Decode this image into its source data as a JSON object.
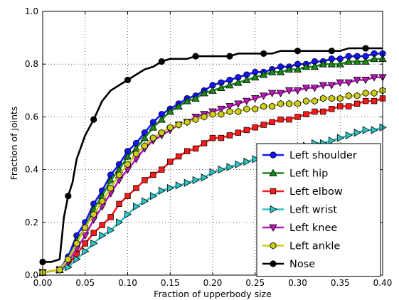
{
  "chart_data": {
    "type": "line",
    "title": "",
    "xlabel": "Fraction of upperbody size",
    "ylabel": "Fraction of joints",
    "xlim": [
      0.0,
      0.4
    ],
    "ylim": [
      0.0,
      1.0
    ],
    "x_ticks": [
      "0.00",
      "0.05",
      "0.10",
      "0.15",
      "0.20",
      "0.25",
      "0.30",
      "0.35",
      "0.40"
    ],
    "y_ticks": [
      "0.0",
      "0.2",
      "0.4",
      "0.6",
      "0.8",
      "1.0"
    ],
    "grid": true,
    "legend_position": "lower-right",
    "series": [
      {
        "name": "Left shoulder",
        "color": "#1414ff",
        "marker": "circle",
        "points": [
          [
            0.0,
            0.01
          ],
          [
            0.02,
            0.02
          ],
          [
            0.03,
            0.07
          ],
          [
            0.04,
            0.15
          ],
          [
            0.05,
            0.2
          ],
          [
            0.06,
            0.27
          ],
          [
            0.07,
            0.32
          ],
          [
            0.08,
            0.38
          ],
          [
            0.09,
            0.42
          ],
          [
            0.1,
            0.47
          ],
          [
            0.11,
            0.5
          ],
          [
            0.12,
            0.54
          ],
          [
            0.13,
            0.58
          ],
          [
            0.14,
            0.61
          ],
          [
            0.15,
            0.63
          ],
          [
            0.16,
            0.65
          ],
          [
            0.17,
            0.67
          ],
          [
            0.18,
            0.68
          ],
          [
            0.19,
            0.7
          ],
          [
            0.2,
            0.72
          ],
          [
            0.21,
            0.73
          ],
          [
            0.22,
            0.74
          ],
          [
            0.23,
            0.75
          ],
          [
            0.24,
            0.76
          ],
          [
            0.25,
            0.77
          ],
          [
            0.26,
            0.77
          ],
          [
            0.27,
            0.78
          ],
          [
            0.28,
            0.79
          ],
          [
            0.29,
            0.79
          ],
          [
            0.3,
            0.8
          ],
          [
            0.31,
            0.8
          ],
          [
            0.32,
            0.81
          ],
          [
            0.33,
            0.81
          ],
          [
            0.34,
            0.82
          ],
          [
            0.35,
            0.82
          ],
          [
            0.36,
            0.83
          ],
          [
            0.37,
            0.83
          ],
          [
            0.38,
            0.83
          ],
          [
            0.39,
            0.84
          ],
          [
            0.4,
            0.84
          ]
        ]
      },
      {
        "name": "Left hip",
        "color": "#1a8a1a",
        "marker": "triangle-up",
        "points": [
          [
            0.0,
            0.01
          ],
          [
            0.02,
            0.02
          ],
          [
            0.03,
            0.06
          ],
          [
            0.04,
            0.13
          ],
          [
            0.05,
            0.18
          ],
          [
            0.06,
            0.25
          ],
          [
            0.07,
            0.3
          ],
          [
            0.08,
            0.36
          ],
          [
            0.09,
            0.4
          ],
          [
            0.1,
            0.45
          ],
          [
            0.11,
            0.48
          ],
          [
            0.12,
            0.52
          ],
          [
            0.13,
            0.56
          ],
          [
            0.14,
            0.59
          ],
          [
            0.15,
            0.62
          ],
          [
            0.16,
            0.64
          ],
          [
            0.17,
            0.66
          ],
          [
            0.18,
            0.67
          ],
          [
            0.19,
            0.69
          ],
          [
            0.2,
            0.7
          ],
          [
            0.21,
            0.71
          ],
          [
            0.22,
            0.72
          ],
          [
            0.23,
            0.73
          ],
          [
            0.24,
            0.74
          ],
          [
            0.25,
            0.75
          ],
          [
            0.26,
            0.76
          ],
          [
            0.27,
            0.77
          ],
          [
            0.28,
            0.77
          ],
          [
            0.29,
            0.78
          ],
          [
            0.3,
            0.78
          ],
          [
            0.31,
            0.79
          ],
          [
            0.32,
            0.79
          ],
          [
            0.33,
            0.8
          ],
          [
            0.34,
            0.8
          ],
          [
            0.35,
            0.8
          ],
          [
            0.36,
            0.81
          ],
          [
            0.37,
            0.81
          ],
          [
            0.38,
            0.81
          ],
          [
            0.39,
            0.82
          ],
          [
            0.4,
            0.82
          ]
        ]
      },
      {
        "name": "Left elbow",
        "color": "#ff1a1a",
        "marker": "square",
        "points": [
          [
            0.0,
            0.01
          ],
          [
            0.02,
            0.02
          ],
          [
            0.03,
            0.04
          ],
          [
            0.04,
            0.08
          ],
          [
            0.05,
            0.12
          ],
          [
            0.06,
            0.16
          ],
          [
            0.07,
            0.19
          ],
          [
            0.08,
            0.22
          ],
          [
            0.09,
            0.27
          ],
          [
            0.1,
            0.3
          ],
          [
            0.11,
            0.33
          ],
          [
            0.12,
            0.36
          ],
          [
            0.13,
            0.38
          ],
          [
            0.14,
            0.4
          ],
          [
            0.15,
            0.43
          ],
          [
            0.16,
            0.45
          ],
          [
            0.17,
            0.47
          ],
          [
            0.18,
            0.48
          ],
          [
            0.19,
            0.5
          ],
          [
            0.2,
            0.52
          ],
          [
            0.21,
            0.52
          ],
          [
            0.22,
            0.53
          ],
          [
            0.23,
            0.54
          ],
          [
            0.24,
            0.55
          ],
          [
            0.25,
            0.56
          ],
          [
            0.26,
            0.57
          ],
          [
            0.27,
            0.58
          ],
          [
            0.28,
            0.59
          ],
          [
            0.29,
            0.59
          ],
          [
            0.3,
            0.6
          ],
          [
            0.31,
            0.61
          ],
          [
            0.32,
            0.62
          ],
          [
            0.33,
            0.62
          ],
          [
            0.34,
            0.63
          ],
          [
            0.35,
            0.64
          ],
          [
            0.36,
            0.64
          ],
          [
            0.37,
            0.65
          ],
          [
            0.38,
            0.66
          ],
          [
            0.39,
            0.66
          ],
          [
            0.4,
            0.67
          ]
        ]
      },
      {
        "name": "Left wrist",
        "color": "#2ec4c4",
        "marker": "triangle-right",
        "points": [
          [
            0.0,
            0.01
          ],
          [
            0.02,
            0.02
          ],
          [
            0.03,
            0.03
          ],
          [
            0.04,
            0.06
          ],
          [
            0.05,
            0.09
          ],
          [
            0.06,
            0.12
          ],
          [
            0.07,
            0.15
          ],
          [
            0.08,
            0.17
          ],
          [
            0.09,
            0.2
          ],
          [
            0.1,
            0.23
          ],
          [
            0.11,
            0.26
          ],
          [
            0.12,
            0.28
          ],
          [
            0.13,
            0.3
          ],
          [
            0.14,
            0.32
          ],
          [
            0.15,
            0.33
          ],
          [
            0.16,
            0.34
          ],
          [
            0.17,
            0.35
          ],
          [
            0.18,
            0.36
          ],
          [
            0.19,
            0.37
          ],
          [
            0.2,
            0.39
          ],
          [
            0.21,
            0.4
          ],
          [
            0.22,
            0.41
          ],
          [
            0.23,
            0.42
          ],
          [
            0.24,
            0.43
          ],
          [
            0.25,
            0.44
          ],
          [
            0.26,
            0.45
          ],
          [
            0.27,
            0.46
          ],
          [
            0.28,
            0.47
          ],
          [
            0.29,
            0.47
          ],
          [
            0.3,
            0.48
          ],
          [
            0.31,
            0.49
          ],
          [
            0.32,
            0.5
          ],
          [
            0.33,
            0.5
          ],
          [
            0.34,
            0.51
          ],
          [
            0.35,
            0.52
          ],
          [
            0.36,
            0.53
          ],
          [
            0.37,
            0.54
          ],
          [
            0.38,
            0.55
          ],
          [
            0.39,
            0.55
          ],
          [
            0.4,
            0.56
          ]
        ]
      },
      {
        "name": "Left knee",
        "color": "#b81ab8",
        "marker": "triangle-down",
        "points": [
          [
            0.0,
            0.01
          ],
          [
            0.02,
            0.02
          ],
          [
            0.03,
            0.05
          ],
          [
            0.04,
            0.1
          ],
          [
            0.05,
            0.15
          ],
          [
            0.06,
            0.21
          ],
          [
            0.07,
            0.26
          ],
          [
            0.08,
            0.31
          ],
          [
            0.09,
            0.36
          ],
          [
            0.1,
            0.4
          ],
          [
            0.11,
            0.44
          ],
          [
            0.12,
            0.48
          ],
          [
            0.13,
            0.51
          ],
          [
            0.14,
            0.53
          ],
          [
            0.15,
            0.55
          ],
          [
            0.16,
            0.57
          ],
          [
            0.17,
            0.58
          ],
          [
            0.18,
            0.6
          ],
          [
            0.19,
            0.61
          ],
          [
            0.2,
            0.62
          ],
          [
            0.21,
            0.63
          ],
          [
            0.22,
            0.64
          ],
          [
            0.23,
            0.65
          ],
          [
            0.24,
            0.66
          ],
          [
            0.25,
            0.67
          ],
          [
            0.26,
            0.68
          ],
          [
            0.27,
            0.69
          ],
          [
            0.28,
            0.69
          ],
          [
            0.29,
            0.7
          ],
          [
            0.3,
            0.7
          ],
          [
            0.31,
            0.71
          ],
          [
            0.32,
            0.71
          ],
          [
            0.33,
            0.72
          ],
          [
            0.34,
            0.72
          ],
          [
            0.35,
            0.73
          ],
          [
            0.36,
            0.73
          ],
          [
            0.37,
            0.74
          ],
          [
            0.38,
            0.74
          ],
          [
            0.39,
            0.75
          ],
          [
            0.4,
            0.75
          ]
        ]
      },
      {
        "name": "Left ankle",
        "color": "#cccc1a",
        "marker": "hexagon",
        "points": [
          [
            0.0,
            0.01
          ],
          [
            0.02,
            0.02
          ],
          [
            0.03,
            0.06
          ],
          [
            0.04,
            0.12
          ],
          [
            0.05,
            0.18
          ],
          [
            0.06,
            0.23
          ],
          [
            0.07,
            0.28
          ],
          [
            0.08,
            0.33
          ],
          [
            0.09,
            0.38
          ],
          [
            0.1,
            0.42
          ],
          [
            0.11,
            0.46
          ],
          [
            0.12,
            0.49
          ],
          [
            0.13,
            0.52
          ],
          [
            0.14,
            0.54
          ],
          [
            0.15,
            0.56
          ],
          [
            0.16,
            0.57
          ],
          [
            0.17,
            0.58
          ],
          [
            0.18,
            0.59
          ],
          [
            0.19,
            0.6
          ],
          [
            0.2,
            0.61
          ],
          [
            0.21,
            0.61
          ],
          [
            0.22,
            0.62
          ],
          [
            0.23,
            0.62
          ],
          [
            0.24,
            0.63
          ],
          [
            0.25,
            0.63
          ],
          [
            0.26,
            0.64
          ],
          [
            0.27,
            0.64
          ],
          [
            0.28,
            0.65
          ],
          [
            0.29,
            0.65
          ],
          [
            0.3,
            0.65
          ],
          [
            0.31,
            0.66
          ],
          [
            0.32,
            0.66
          ],
          [
            0.33,
            0.67
          ],
          [
            0.34,
            0.67
          ],
          [
            0.35,
            0.67
          ],
          [
            0.36,
            0.68
          ],
          [
            0.37,
            0.68
          ],
          [
            0.38,
            0.69
          ],
          [
            0.39,
            0.69
          ],
          [
            0.4,
            0.7
          ]
        ]
      },
      {
        "name": "Nose",
        "color": "#000000",
        "marker": "circle",
        "markevery": 4,
        "points": [
          [
            0.0,
            0.05
          ],
          [
            0.01,
            0.05
          ],
          [
            0.02,
            0.06
          ],
          [
            0.025,
            0.22
          ],
          [
            0.03,
            0.3
          ],
          [
            0.035,
            0.35
          ],
          [
            0.04,
            0.44
          ],
          [
            0.05,
            0.53
          ],
          [
            0.06,
            0.59
          ],
          [
            0.07,
            0.66
          ],
          [
            0.08,
            0.7
          ],
          [
            0.09,
            0.72
          ],
          [
            0.1,
            0.74
          ],
          [
            0.11,
            0.76
          ],
          [
            0.12,
            0.78
          ],
          [
            0.13,
            0.79
          ],
          [
            0.14,
            0.81
          ],
          [
            0.15,
            0.82
          ],
          [
            0.16,
            0.82
          ],
          [
            0.17,
            0.82
          ],
          [
            0.18,
            0.83
          ],
          [
            0.19,
            0.83
          ],
          [
            0.2,
            0.83
          ],
          [
            0.21,
            0.83
          ],
          [
            0.22,
            0.83
          ],
          [
            0.23,
            0.84
          ],
          [
            0.24,
            0.84
          ],
          [
            0.25,
            0.84
          ],
          [
            0.26,
            0.84
          ],
          [
            0.27,
            0.84
          ],
          [
            0.28,
            0.85
          ],
          [
            0.29,
            0.85
          ],
          [
            0.3,
            0.85
          ],
          [
            0.31,
            0.85
          ],
          [
            0.32,
            0.85
          ],
          [
            0.33,
            0.85
          ],
          [
            0.34,
            0.85
          ],
          [
            0.35,
            0.85
          ],
          [
            0.36,
            0.86
          ],
          [
            0.37,
            0.86
          ],
          [
            0.38,
            0.86
          ],
          [
            0.39,
            0.86
          ],
          [
            0.4,
            0.86
          ]
        ]
      }
    ]
  }
}
